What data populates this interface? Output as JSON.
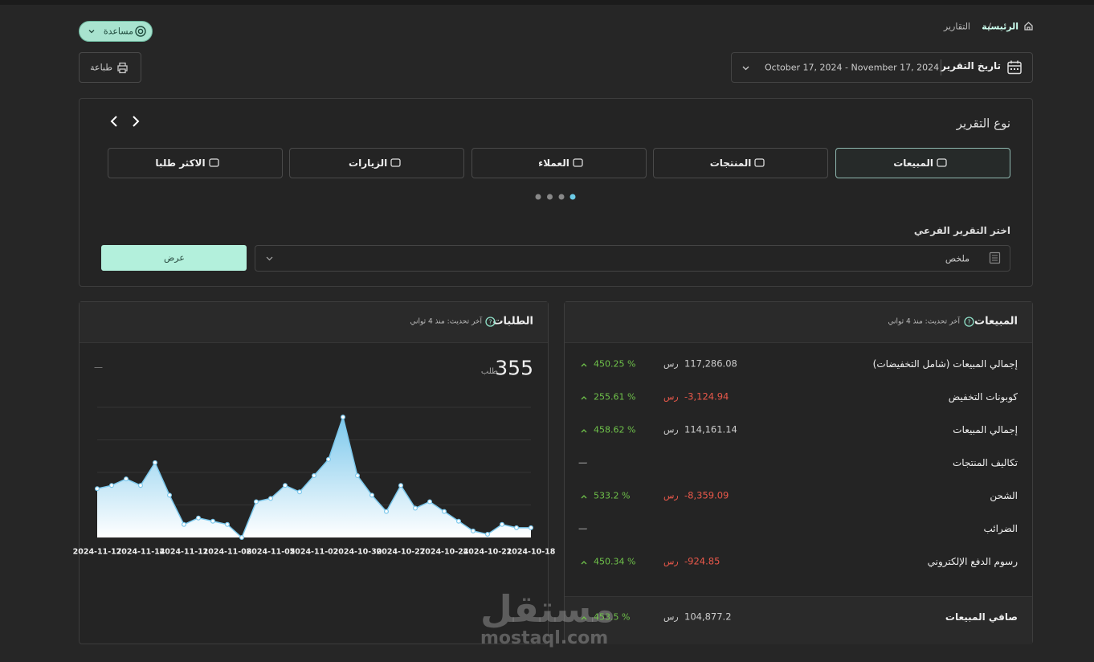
{
  "breadcrumb": {
    "home": "الرئيسية",
    "separator": "/",
    "current": "التقارير"
  },
  "help_button": "مساعدة",
  "date_filter": {
    "label": "تاريخ التقرير",
    "range": "October 17, 2024 - November 17, 2024"
  },
  "print_button": "طباعة",
  "report_type": {
    "title": "نوع التقرير",
    "tabs": [
      "المبيعات",
      "المنتجات",
      "العملاء",
      "الزيارات",
      "الاكثر طلبا"
    ],
    "active_tab": 0
  },
  "sub_report": {
    "label": "اختر التقرير الفرعي",
    "selected": "ملخص",
    "button": "عرض"
  },
  "orders": {
    "title": "الطلبات",
    "updated": "آخر تحديث: منذ 4 ثواني",
    "total": "355",
    "unit": "طلب",
    "change": "—",
    "chart_data": {
      "type": "line",
      "color": "#7cc8ec",
      "categories": [
        "2024-11-17",
        null,
        null,
        "2024-11-14",
        null,
        null,
        "2024-11-11",
        null,
        null,
        "2024-11-08",
        null,
        null,
        "2024-11-05",
        null,
        null,
        "2024-11-02",
        null,
        null,
        "2024-10-30",
        null,
        null,
        "2024-10-27",
        null,
        null,
        "2024-10-24",
        null,
        null,
        "2024-10-21",
        null,
        null,
        "2024-10-18"
      ],
      "values": [
        15,
        16,
        18,
        16,
        23,
        13,
        4,
        6,
        5,
        4,
        0,
        11,
        12,
        16,
        14,
        19,
        24,
        37,
        19,
        13,
        8,
        16,
        9,
        11,
        8,
        5,
        2,
        1,
        4,
        3,
        3
      ],
      "ylim": [
        0,
        40
      ],
      "yticks": [
        0,
        10,
        20,
        30,
        40
      ],
      "grid": true
    }
  },
  "sales": {
    "title": "المبيعات",
    "updated": "آخر تحديث: منذ 4 ثواني",
    "rows": [
      {
        "label": "إجمالي المبيعات (شامل التخفيضات)",
        "amount": "117,286.08",
        "currency": "رس",
        "change": "450.25 %"
      },
      {
        "label": "كوبونات التخفيض",
        "amount": "-3,124.94",
        "currency": "رس",
        "change": "255.61 %"
      },
      {
        "label": "إجمالي المبيعات",
        "amount": "114,161.14",
        "currency": "رس",
        "change": "458.62 %"
      },
      {
        "label": "تكاليف المنتجات",
        "amount": "—",
        "change": "—"
      },
      {
        "label": "الشحن",
        "amount": "-8,359.09",
        "currency": "رس",
        "change": "533.2 %"
      },
      {
        "label": "الضرائب",
        "amount": "—",
        "change": "—"
      },
      {
        "label": "رسوم الدفع الإلكتروني",
        "amount": "-924.85",
        "currency": "رس",
        "change": "450.34 %"
      }
    ],
    "net": {
      "label": "صافي المبيعات",
      "amount": "104,877.2",
      "currency": "رس",
      "change": "453.5 %"
    }
  },
  "watermark": {
    "name": "مستقل",
    "url": "mostaql.com"
  }
}
